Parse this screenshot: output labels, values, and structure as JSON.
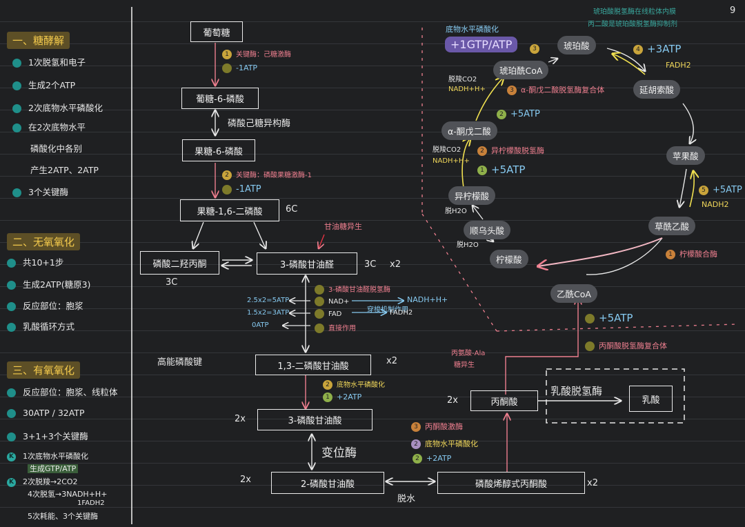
{
  "page_number": "9",
  "left": {
    "s1": {
      "title": "一、糖酵解",
      "items": [
        "1次脱氢和电子",
        "生成2个ATP",
        "2次底物水平磷酸化",
        "在2次底物水平",
        "磷酸化中各别",
        "产生2ATP、2ATP",
        "3个关键酶"
      ]
    },
    "s2": {
      "title": "二、无氧氧化",
      "items": [
        "共10+1步",
        "生成2ATP(糖原3)",
        "反应部位：胞浆",
        "乳酸循环方式"
      ]
    },
    "s3": {
      "title": "三、有氧氧化",
      "items": [
        "反应部位：胞浆、线粒体",
        "30ATP / 32ATP",
        "3+1+3个关键酶",
        "1次底物水平磷酸化",
        "生成GTP/ATP",
        "2次脱羧→2CO2",
        "4次脱氢→3NADH+H+",
        "1FADH2",
        "5次耗能、3个关键酶"
      ]
    },
    "k_mark": "K"
  },
  "glycolysis": {
    "glucose": "葡萄糖",
    "g6p": "葡糖-6-磷酸",
    "f6p": "果糖-6-磷酸",
    "f16bp": "果糖-1,6-二磷酸",
    "f16bp_note": "6C",
    "dhap": "磷酸二羟丙酮",
    "dhap_note": "3C",
    "g3p": "3-磷酸甘油醛",
    "g3p_note": "3C",
    "g3p_x": "x2",
    "g3p_arrow_note": "甘油糖异生",
    "bpg13": "1,3-二磷酸甘油酸",
    "bpg13_x": "x2",
    "pg3": "3-磷酸甘油酸",
    "pg3_x": "2x",
    "pg2": "2-磷酸甘油酸",
    "pg2_x": "2x",
    "pep": "磷酸烯醇式丙酮酸",
    "pep_x": "x2",
    "pyruvate": "丙酮酸",
    "pyruvate_x": "2x",
    "lactate": "乳酸",
    "ldh": "乳酸脱氢酶",
    "step1_enzyme": "关键酶：己糖激酶",
    "step1_atp": "-1ATP",
    "iso1": "磷酸己糖异构酶",
    "step2_enzyme": "关键酶：磷酸果糖激酶-1",
    "step2_atp": "-1ATP",
    "high_energy": "高能磷酸键",
    "g3p_dh": "3-磷酸甘油醛脱氢酶",
    "nad_h": "NAD+",
    "nadh": "NADH+H+",
    "fad": "FAD",
    "fadh2": "FADH2",
    "shuttle": "穿梭机制作用",
    "direct": "直接作用",
    "calc1": "2.5x2=5ATP",
    "calc2": "1.5x2=3ATP",
    "calc3": "0ATP",
    "sub_phos1": "底物水平磷酸化",
    "plus2atp1": "+2ATP",
    "mutase": "变位酶",
    "dehydrate": "脱水",
    "pk": "丙酮酸激酶",
    "sub_phos2": "底物水平磷酸化",
    "plus2atp2": "+2ATP",
    "ala": "丙氨酸-Ala",
    "ala2": "糖异生"
  },
  "tca": {
    "acetyl": "乙酰CoA",
    "plus5atp_bottom": "+5ATP",
    "pdh": "丙酮酸脱氢酶复合体",
    "citrate": "柠檬酸",
    "citrate_syn": "柠檬酸合酶",
    "cis": "顺乌头酸",
    "isocitrate": "异柠檬酸",
    "h2o_1": "脱H2O",
    "h2o_2": "脱H2O",
    "idh": "异柠檬酸脱氢酶",
    "co2_1": "脱羧CO2",
    "nadh_1": "NADH+H+",
    "plus5atp_1": "+5ATP",
    "akg": "α-酮戊二酸",
    "akgdh": "α-酮戊二酸脱氢酶复合体",
    "co2_2": "脱羧CO2",
    "nadh_2": "NADH+H+",
    "plus5atp_2": "+5ATP",
    "succoa": "琥珀酰CoA",
    "sub_phos": "底物水平磷酸化",
    "gtp": "+1GTP/ATP",
    "succ": "琥珀酸",
    "plus3atp": "+3ATP",
    "fadh2": "FADH2",
    "fum": "延胡索酸",
    "mal": "苹果酸",
    "plus5atp_m": "+5ATP",
    "nadh_m": "NADH2",
    "oaa": "草酰乙酸",
    "top_note1": "琥珀酸脱氢酶在线粒体内膜",
    "top_note2": "丙二酸是琥珀酸脱氢酶抑制剂"
  },
  "nums": {
    "n1": "1",
    "n2": "2",
    "n3": "3",
    "n4": "4",
    "n5": "5"
  }
}
